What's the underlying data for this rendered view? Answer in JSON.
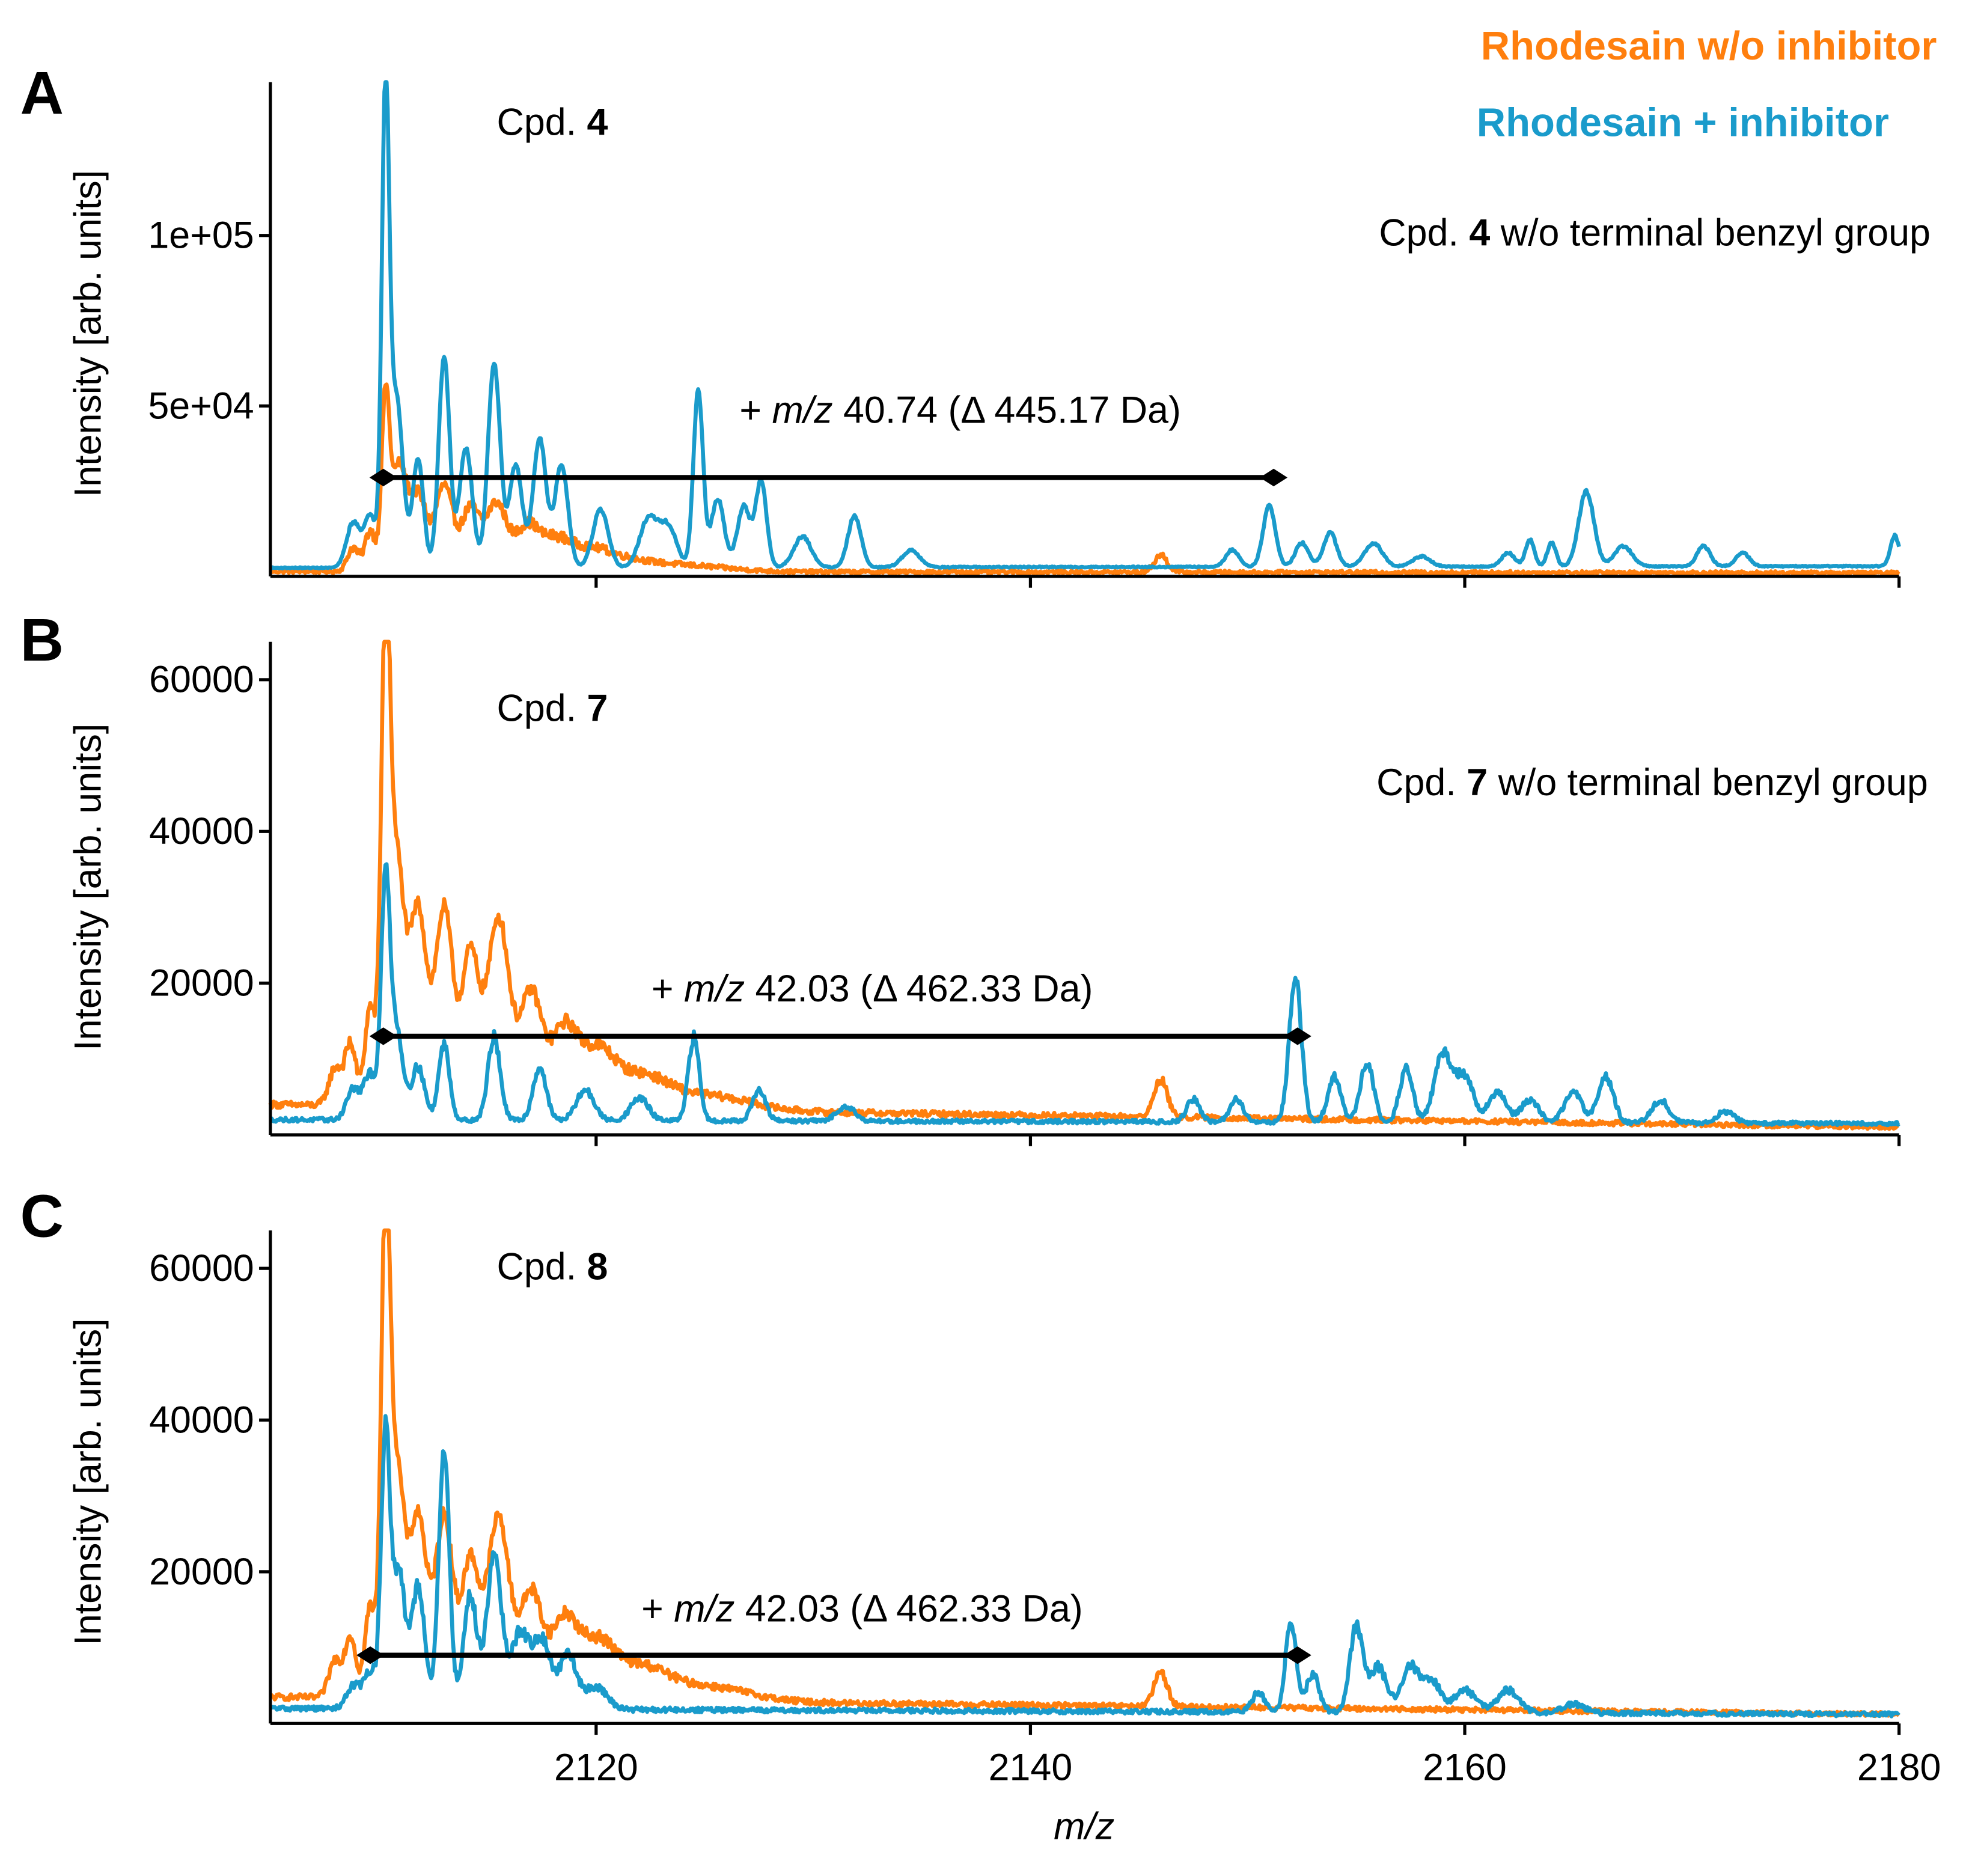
{
  "legend": {
    "items": [
      {
        "label": "Rhodesain w/o inhibitor",
        "color": "#FF7F0E"
      },
      {
        "label": "Rhodesain + inhibitor",
        "color": "#1A9BCB"
      }
    ]
  },
  "x_axis": {
    "label_italic": "m/z",
    "range": [
      2105,
      2180
    ],
    "ticks": [
      2120,
      2140,
      2160,
      2180
    ],
    "tick_labels": [
      "2120",
      "2140",
      "2160",
      "2180"
    ]
  },
  "panels": [
    {
      "letter": "A",
      "ylabel": "Intensity [arb. units]",
      "cpd_prefix": "Cpd. ",
      "cpd_number": "4",
      "note_prefix": "Cpd. ",
      "note_number": "4",
      "note_suffix": " w/o terminal benzyl group",
      "shift_plus": "+ ",
      "shift_mz": "m/z",
      "shift_value": " 40.74 (Δ 445.17 Da)",
      "arrow": {
        "x1": 2110.2,
        "x2": 2151.2,
        "y": 29000
      },
      "yticks": [
        50000,
        100000
      ],
      "ytick_labels": [
        "5e+04",
        "1e+05"
      ]
    },
    {
      "letter": "B",
      "ylabel": "Intensity [arb. units]",
      "cpd_prefix": "Cpd. ",
      "cpd_number": "7",
      "note_prefix": "Cpd. ",
      "note_number": "7",
      "note_suffix": " w/o terminal benzyl group",
      "shift_plus": "+ ",
      "shift_mz": "m/z",
      "shift_value": " 42.03 (Δ 462.33 Da)",
      "arrow": {
        "x1": 2110.2,
        "x2": 2152.3,
        "y": 13000
      },
      "yticks": [
        20000,
        40000,
        60000
      ],
      "ytick_labels": [
        "20000",
        "40000",
        "60000"
      ]
    },
    {
      "letter": "C",
      "ylabel": "Intensity [arb. units]",
      "cpd_prefix": "Cpd. ",
      "cpd_number": "8",
      "shift_plus": "+ ",
      "shift_mz": "m/z",
      "shift_value": " 42.03 (Δ 462.33 Da)",
      "arrow": {
        "x1": 2109.6,
        "x2": 2152.3,
        "y": 9000
      },
      "yticks": [
        20000,
        40000,
        60000
      ],
      "ytick_labels": [
        "20000",
        "40000",
        "60000"
      ]
    }
  ],
  "chart_data": [
    {
      "type": "line",
      "panel": "A",
      "title": "Cpd. 4",
      "xlabel": "m/z",
      "ylabel": "Intensity [arb. units]",
      "xlim": [
        2105,
        2180
      ],
      "ylim": [
        0,
        145000
      ],
      "series": [
        {
          "name": "Rhodesain w/o inhibitor",
          "color": "#FF7F0E",
          "baseline": 1500,
          "baseline_end": 1000,
          "noise": 1600,
          "peaks": [
            [
              2108.8,
              7000,
              0.25
            ],
            [
              2109.6,
              12000,
              0.25
            ],
            [
              2110.3,
              48000,
              0.18
            ],
            [
              2110.9,
              30000,
              0.35
            ],
            [
              2111.8,
              22000,
              0.4
            ],
            [
              2113.0,
              25000,
              0.4
            ],
            [
              2114.2,
              18000,
              0.4
            ],
            [
              2115.4,
              20000,
              0.5
            ],
            [
              2116.8,
              12000,
              0.5
            ],
            [
              2118.0,
              8000,
              0.7
            ],
            [
              2119.5,
              5000,
              1.0
            ],
            [
              2121.0,
              3000,
              1.4
            ],
            [
              2124.0,
              1800,
              2.0
            ],
            [
              2146.0,
              5000,
              0.3
            ]
          ]
        },
        {
          "name": "Rhodesain + inhibitor",
          "color": "#1A9BCB",
          "baseline": 2500,
          "baseline_end": 3000,
          "noise": 500,
          "peaks": [
            [
              2108.8,
              13000,
              0.3
            ],
            [
              2109.6,
              15000,
              0.3
            ],
            [
              2110.3,
              135000,
              0.17
            ],
            [
              2110.8,
              50000,
              0.3
            ],
            [
              2111.8,
              32000,
              0.25
            ],
            [
              2113.0,
              62000,
              0.25
            ],
            [
              2114.0,
              35000,
              0.3
            ],
            [
              2115.3,
              60000,
              0.28
            ],
            [
              2116.3,
              30000,
              0.3
            ],
            [
              2117.4,
              38000,
              0.3
            ],
            [
              2118.4,
              30000,
              0.3
            ],
            [
              2120.2,
              17000,
              0.35
            ],
            [
              2122.4,
              14000,
              0.4
            ],
            [
              2123.3,
              12000,
              0.4
            ],
            [
              2124.7,
              52000,
              0.22
            ],
            [
              2125.6,
              20000,
              0.3
            ],
            [
              2126.8,
              18000,
              0.3
            ],
            [
              2127.6,
              25000,
              0.25
            ],
            [
              2129.5,
              9000,
              0.4
            ],
            [
              2131.9,
              15000,
              0.3
            ],
            [
              2134.5,
              5000,
              0.4
            ],
            [
              2149.3,
              5000,
              0.3
            ],
            [
              2151.0,
              18000,
              0.28
            ],
            [
              2152.5,
              7000,
              0.3
            ],
            [
              2153.8,
              10000,
              0.3
            ],
            [
              2155.8,
              7000,
              0.4
            ],
            [
              2158.0,
              3000,
              0.4
            ],
            [
              2162.0,
              4000,
              0.3
            ],
            [
              2163.0,
              8000,
              0.2
            ],
            [
              2164.0,
              7000,
              0.2
            ],
            [
              2165.6,
              22000,
              0.35
            ],
            [
              2167.3,
              6000,
              0.4
            ],
            [
              2171.0,
              6000,
              0.3
            ],
            [
              2172.8,
              4000,
              0.3
            ],
            [
              2179.8,
              9000,
              0.2
            ]
          ]
        }
      ]
    },
    {
      "type": "line",
      "panel": "B",
      "title": "Cpd. 7",
      "xlabel": "m/z",
      "ylabel": "Intensity [arb. units]",
      "xlim": [
        2105,
        2180
      ],
      "ylim": [
        0,
        65000
      ],
      "series": [
        {
          "name": "Rhodesain w/o inhibitor",
          "color": "#FF7F0E",
          "baseline": 4000,
          "baseline_end": 1000,
          "noise": 900,
          "peaks": [
            [
              2108.0,
              5000,
              0.3
            ],
            [
              2108.7,
              8000,
              0.25
            ],
            [
              2109.6,
              13000,
              0.25
            ],
            [
              2110.3,
              59000,
              0.2
            ],
            [
              2110.8,
              32000,
              0.35
            ],
            [
              2111.8,
              26000,
              0.4
            ],
            [
              2113.0,
              26000,
              0.4
            ],
            [
              2114.2,
              20000,
              0.4
            ],
            [
              2115.5,
              25000,
              0.5
            ],
            [
              2117.0,
              15000,
              0.5
            ],
            [
              2118.5,
              10000,
              0.6
            ],
            [
              2120.0,
              7000,
              0.8
            ],
            [
              2122.0,
              4000,
              1.2
            ],
            [
              2125.0,
              2000,
              2.0
            ],
            [
              2146.0,
              5000,
              0.3
            ]
          ]
        },
        {
          "name": "Rhodesain + inhibitor",
          "color": "#1A9BCB",
          "baseline": 2000,
          "baseline_end": 1500,
          "noise": 800,
          "peaks": [
            [
              2108.8,
              4000,
              0.3
            ],
            [
              2109.6,
              6000,
              0.3
            ],
            [
              2110.3,
              30000,
              0.2
            ],
            [
              2110.8,
              12000,
              0.3
            ],
            [
              2111.8,
              7000,
              0.3
            ],
            [
              2113.0,
              10000,
              0.25
            ],
            [
              2115.3,
              11000,
              0.28
            ],
            [
              2117.4,
              7000,
              0.3
            ],
            [
              2119.5,
              4000,
              0.4
            ],
            [
              2122.0,
              3000,
              0.4
            ],
            [
              2124.5,
              11000,
              0.25
            ],
            [
              2127.5,
              4000,
              0.3
            ],
            [
              2131.5,
              2000,
              0.4
            ],
            [
              2147.5,
              3000,
              0.3
            ],
            [
              2149.5,
              3000,
              0.3
            ],
            [
              2152.2,
              19000,
              0.28
            ],
            [
              2154.0,
              6000,
              0.3
            ],
            [
              2155.5,
              8000,
              0.3
            ],
            [
              2157.3,
              7000,
              0.3
            ],
            [
              2159.0,
              9000,
              0.4
            ],
            [
              2160.0,
              6000,
              0.4
            ],
            [
              2161.5,
              4000,
              0.4
            ],
            [
              2163.0,
              3000,
              0.4
            ],
            [
              2165.0,
              4000,
              0.4
            ],
            [
              2166.5,
              6000,
              0.35
            ],
            [
              2169.0,
              3000,
              0.4
            ],
            [
              2172.0,
              1500,
              0.4
            ]
          ]
        }
      ]
    },
    {
      "type": "line",
      "panel": "C",
      "title": "Cpd. 8",
      "xlabel": "m/z",
      "ylabel": "Intensity [arb. units]",
      "xlim": [
        2105,
        2180
      ],
      "ylim": [
        0,
        65000
      ],
      "series": [
        {
          "name": "Rhodesain w/o inhibitor",
          "color": "#FF7F0E",
          "baseline": 3500,
          "baseline_end": 1200,
          "noise": 900,
          "peaks": [
            [
              2108.0,
              5000,
              0.3
            ],
            [
              2108.7,
              8000,
              0.25
            ],
            [
              2109.6,
              12000,
              0.25
            ],
            [
              2110.3,
              60000,
              0.2
            ],
            [
              2110.8,
              30000,
              0.35
            ],
            [
              2111.8,
              24000,
              0.4
            ],
            [
              2113.0,
              24000,
              0.4
            ],
            [
              2114.2,
              18000,
              0.4
            ],
            [
              2115.5,
              24000,
              0.5
            ],
            [
              2117.0,
              14000,
              0.5
            ],
            [
              2118.5,
              10000,
              0.6
            ],
            [
              2120.0,
              7000,
              0.8
            ],
            [
              2122.0,
              4000,
              1.2
            ],
            [
              2125.0,
              2000,
              2.0
            ],
            [
              2146.0,
              4500,
              0.3
            ]
          ]
        },
        {
          "name": "Rhodesain + inhibitor",
          "color": "#1A9BCB",
          "baseline": 2000,
          "baseline_end": 1200,
          "noise": 900,
          "peaks": [
            [
              2108.8,
              3000,
              0.3
            ],
            [
              2109.6,
              5000,
              0.3
            ],
            [
              2110.3,
              35000,
              0.2
            ],
            [
              2110.9,
              18000,
              0.3
            ],
            [
              2111.8,
              16000,
              0.3
            ],
            [
              2113.0,
              34000,
              0.25
            ],
            [
              2114.2,
              15000,
              0.3
            ],
            [
              2115.3,
              20000,
              0.35
            ],
            [
              2116.5,
              10000,
              0.4
            ],
            [
              2117.5,
              9000,
              0.4
            ],
            [
              2118.7,
              7000,
              0.4
            ],
            [
              2120.0,
              3000,
              0.5
            ],
            [
              2150.5,
              2500,
              0.3
            ],
            [
              2152.0,
              12000,
              0.25
            ],
            [
              2153.0,
              5000,
              0.3
            ],
            [
              2155.0,
              11000,
              0.3
            ],
            [
              2156.0,
              6000,
              0.4
            ],
            [
              2157.5,
              6000,
              0.4
            ],
            [
              2158.5,
              4000,
              0.4
            ],
            [
              2160.0,
              3000,
              0.5
            ],
            [
              2162.0,
              3000,
              0.5
            ],
            [
              2165.0,
              1200,
              0.5
            ]
          ]
        }
      ]
    }
  ]
}
